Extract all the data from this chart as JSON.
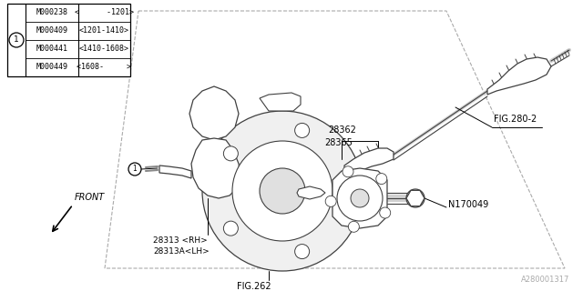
{
  "bg_color": "#ffffff",
  "line_color": "#404040",
  "text_color": "#000000",
  "fig_width": 6.4,
  "fig_height": 3.2,
  "dpi": 100,
  "table_rows": [
    [
      "M000238",
      "<      -1201>"
    ],
    [
      "M000409",
      "<1201-1410>"
    ],
    [
      "M000441",
      "<1410-1608>"
    ],
    [
      "M000449",
      "<1608-     >"
    ]
  ],
  "watermark": "A280001317"
}
